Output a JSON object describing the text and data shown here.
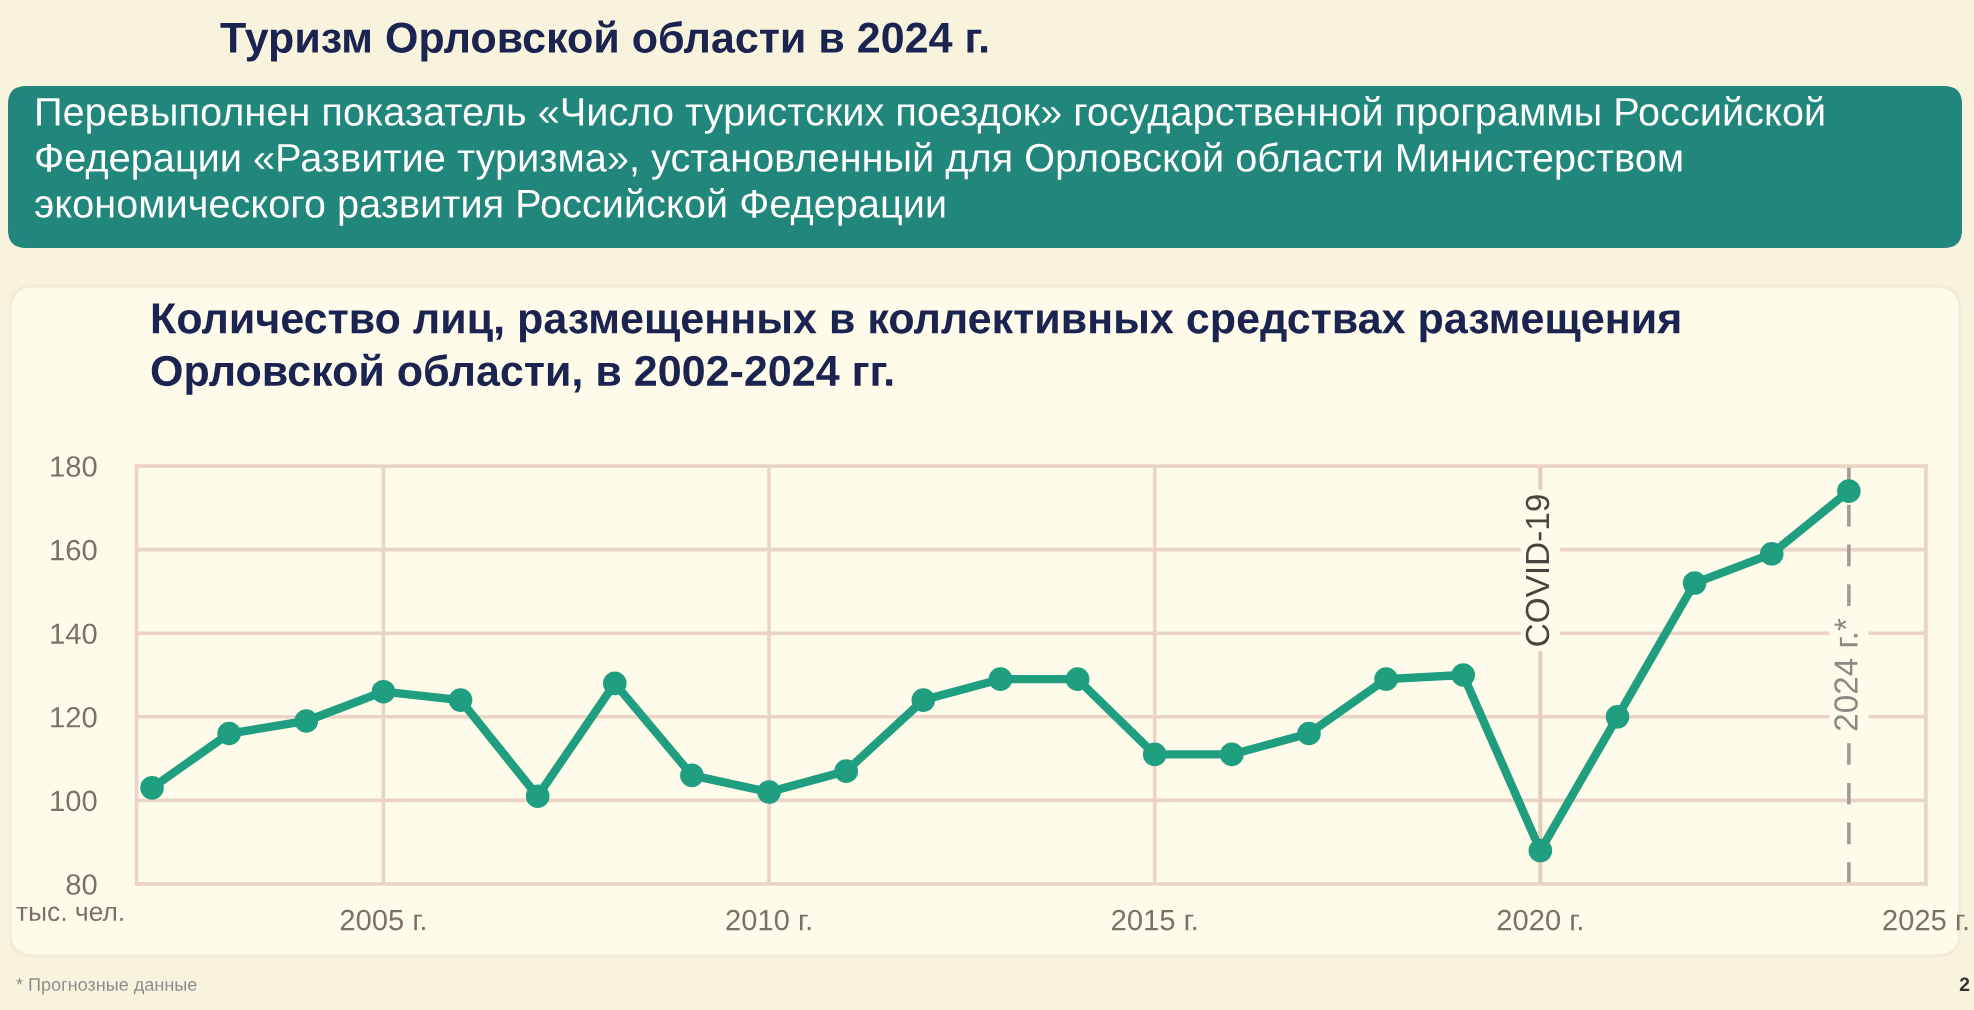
{
  "chart_data": {
    "type": "line",
    "title": "Количество лиц, размещенных в коллективных средствах размещения Орловской области, в 2002-2024 гг.",
    "ylabel": "тыс. чел.",
    "annotations": [
      "Туризм Орловской области в 2024 г.",
      "Перевыполнен показатель «Число туристских поездок» государственной программы Российской Федерации «Развитие туризма», установленный для Орловской области Министерством экономического развития Российской Федерации",
      "* Прогнозные данные",
      "2"
    ],
    "x": [
      2002,
      2003,
      2004,
      2005,
      2006,
      2007,
      2008,
      2009,
      2010,
      2011,
      2012,
      2013,
      2014,
      2015,
      2016,
      2017,
      2018,
      2019,
      2020,
      2021,
      2022,
      2023,
      2024
    ],
    "series": [
      {
        "color": "#1f9e80",
        "values": [
          103,
          116,
          119,
          126,
          124,
          101,
          128,
          106,
          102,
          107,
          124,
          129,
          129,
          111,
          111,
          116,
          129,
          130,
          88,
          120,
          152,
          159,
          174
        ]
      }
    ],
    "xlim": [
      2001.8,
      2025
    ],
    "xticks": [
      {
        "value": 2005,
        "label": "2005 г."
      },
      {
        "value": 2010,
        "label": "2010 г."
      },
      {
        "value": 2015,
        "label": "2015 г."
      },
      {
        "value": 2020,
        "label": "2020 г."
      },
      {
        "value": 2025,
        "label": "2025 г."
      }
    ],
    "ylim": [
      80,
      180
    ],
    "yticks": [
      80,
      100,
      120,
      140,
      160,
      180
    ],
    "grid": true,
    "marker": "circle",
    "line_style": "solid",
    "ref_lines": [
      {
        "axis": "x",
        "value": 2020,
        "label": "COVID-19",
        "color": "#e6cbbb"
      },
      {
        "axis": "x",
        "value": 2024,
        "label": "2024 г.*",
        "color": "#a39b95",
        "line_style": "dashed"
      }
    ]
  }
}
